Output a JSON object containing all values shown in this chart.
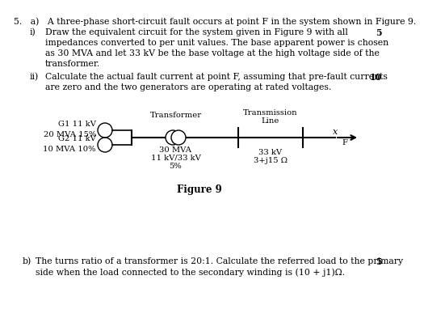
{
  "background_color": "#ffffff",
  "text_color": "#000000",
  "fs_main": 7.8,
  "fs_small": 7.2,
  "fs_fig": 8.5,
  "line5a": "5.   a)   A three-phase short-circuit fault occurs at point F in the system shown in Figure 9.",
  "li_label": "i)",
  "li_line1": "Draw the equivalent circuit for the system given in Figure 9 with all",
  "li_line2": "impedances converted to per unit values. The base apparent power is chosen",
  "li_line3": "as 30 MVA and let 33 kV be the base voltage at the high voltage side of the",
  "li_line4": "transformer.",
  "li_marks": "5",
  "lii_label": "ii)",
  "lii_line1": "Calculate the actual fault current at point F, assuming that pre-fault currents",
  "lii_line2": "are zero and the two generators are operating at rated voltages.",
  "lii_marks": "10",
  "g1_line1": "G1 11 kV",
  "g1_line2": "20 MVA 15%",
  "g2_line1": "G2 11 kV",
  "g2_line2": "10 MVA 10%",
  "transformer_label": "Transformer",
  "tr_spec1": "30 MVA",
  "tr_spec2": "11 kV/33 kV",
  "tr_spec3": "5%",
  "trans_line_label1": "Transmission",
  "trans_line_label2": "Line",
  "tl_spec1": "33 kV",
  "tl_spec2": "3+j15 Ω",
  "fault_label": "F",
  "fig_caption": "Figure 9",
  "lb_label": "b)",
  "lb_line1": "The turns ratio of a transformer is 20:1. Calculate the referred load to the primary",
  "lb_line2": "side when the load connected to the secondary winding is (10 + j1)Ω.",
  "lb_marks": "5"
}
